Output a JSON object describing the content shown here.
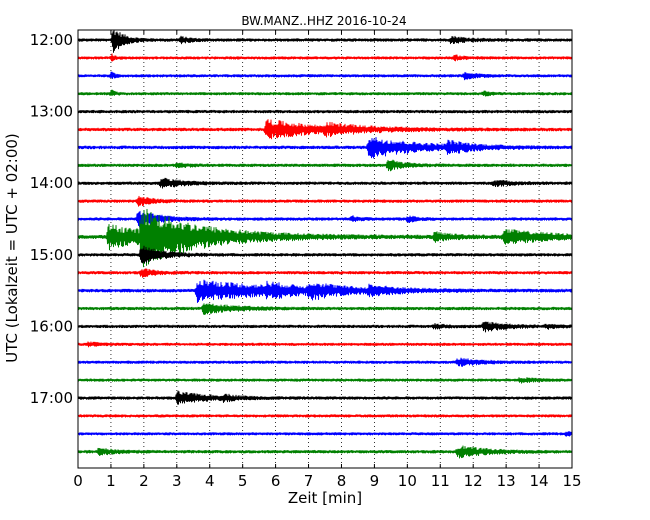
{
  "chart_data": {
    "type": "line",
    "title": "BW.MANZ..HHZ 2016-10-24",
    "xlabel": "Zeit  [min]",
    "ylabel": "UTC (Lokalzeit = UTC + 02:00)",
    "xlim": [
      0,
      15
    ],
    "x_ticks": [
      "0",
      "1",
      "2",
      "3",
      "4",
      "5",
      "6",
      "7",
      "8",
      "9",
      "10",
      "11",
      "12",
      "13",
      "14",
      "15"
    ],
    "y_ticks": [
      "12:00",
      "13:00",
      "14:00",
      "15:00",
      "16:00",
      "17:00"
    ],
    "trace_interval_min": 15,
    "start_time": "12:00",
    "grid": "vertical dotted lines at each minute",
    "trace_colors": [
      "#000000",
      "#ff0000",
      "#0000ff",
      "#008000"
    ],
    "traces": [
      {
        "start": "12:00",
        "color": "#000000",
        "noise": 1.3,
        "events": [
          {
            "t": 1.05,
            "amp": 14,
            "dur": 0.3
          },
          {
            "t": 3.1,
            "amp": 3,
            "dur": 0.3
          },
          {
            "t": 11.3,
            "amp": 3.5,
            "dur": 0.5
          }
        ]
      },
      {
        "start": "12:15",
        "color": "#ff0000",
        "noise": 1.2,
        "events": [
          {
            "t": 1.0,
            "amp": 4,
            "dur": 0.1
          },
          {
            "t": 11.4,
            "amp": 2.5,
            "dur": 0.3
          }
        ]
      },
      {
        "start": "12:30",
        "color": "#0000ff",
        "noise": 1.2,
        "events": [
          {
            "t": 1.0,
            "amp": 4,
            "dur": 0.1
          },
          {
            "t": 11.7,
            "amp": 3,
            "dur": 0.4
          }
        ]
      },
      {
        "start": "12:45",
        "color": "#008000",
        "noise": 1.2,
        "events": [
          {
            "t": 1.0,
            "amp": 4,
            "dur": 0.1
          },
          {
            "t": 12.3,
            "amp": 2.5,
            "dur": 0.2
          }
        ]
      },
      {
        "start": "13:00",
        "color": "#000000",
        "noise": 1.3,
        "events": []
      },
      {
        "start": "13:15",
        "color": "#ff0000",
        "noise": 1.4,
        "events": [
          {
            "t": 5.7,
            "amp": 10,
            "dur": 1.4
          },
          {
            "t": 7.5,
            "amp": 4,
            "dur": 1.2
          }
        ]
      },
      {
        "start": "13:30",
        "color": "#0000ff",
        "noise": 1.4,
        "events": [
          {
            "t": 8.8,
            "amp": 11,
            "dur": 1.4
          },
          {
            "t": 11.2,
            "amp": 5,
            "dur": 0.7
          }
        ]
      },
      {
        "start": "13:45",
        "color": "#008000",
        "noise": 1.3,
        "events": [
          {
            "t": 3.0,
            "amp": 2.5,
            "dur": 0.3
          },
          {
            "t": 9.4,
            "amp": 6,
            "dur": 0.4
          }
        ]
      },
      {
        "start": "14:00",
        "color": "#000000",
        "noise": 1.3,
        "events": [
          {
            "t": 2.5,
            "amp": 5,
            "dur": 0.6
          },
          {
            "t": 12.6,
            "amp": 3,
            "dur": 0.5
          }
        ]
      },
      {
        "start": "14:15",
        "color": "#ff0000",
        "noise": 1.3,
        "events": [
          {
            "t": 1.8,
            "amp": 5,
            "dur": 0.4
          }
        ]
      },
      {
        "start": "14:30",
        "color": "#0000ff",
        "noise": 1.3,
        "events": [
          {
            "t": 1.8,
            "amp": 9,
            "dur": 0.6
          },
          {
            "t": 8.3,
            "amp": 3,
            "dur": 0.2
          },
          {
            "t": 10.0,
            "amp": 3,
            "dur": 0.3
          }
        ]
      },
      {
        "start": "14:45",
        "color": "#008000",
        "noise": 1.6,
        "events": [
          {
            "t": 0.9,
            "amp": 12,
            "dur": 1.6
          },
          {
            "t": 1.9,
            "amp": 24,
            "dur": 1.8
          },
          {
            "t": 10.8,
            "amp": 4,
            "dur": 0.6
          },
          {
            "t": 12.9,
            "amp": 7,
            "dur": 1.4
          }
        ]
      },
      {
        "start": "15:00",
        "color": "#000000",
        "noise": 1.3,
        "events": [
          {
            "t": 1.9,
            "amp": 9,
            "dur": 0.6
          }
        ]
      },
      {
        "start": "15:15",
        "color": "#ff0000",
        "noise": 1.3,
        "events": [
          {
            "t": 1.9,
            "amp": 4,
            "dur": 0.4
          }
        ]
      },
      {
        "start": "15:30",
        "color": "#0000ff",
        "noise": 1.4,
        "events": [
          {
            "t": 3.6,
            "amp": 11,
            "dur": 2.2
          },
          {
            "t": 5.7,
            "amp": 5,
            "dur": 0.8
          },
          {
            "t": 7.0,
            "amp": 7,
            "dur": 0.8
          },
          {
            "t": 8.8,
            "amp": 4,
            "dur": 0.8
          }
        ]
      },
      {
        "start": "15:45",
        "color": "#008000",
        "noise": 1.3,
        "events": [
          {
            "t": 3.8,
            "amp": 6,
            "dur": 0.8
          }
        ]
      },
      {
        "start": "16:00",
        "color": "#000000",
        "noise": 1.3,
        "events": [
          {
            "t": 10.8,
            "amp": 2.5,
            "dur": 0.3
          },
          {
            "t": 12.3,
            "amp": 5,
            "dur": 0.6
          },
          {
            "t": 14.2,
            "amp": 2,
            "dur": 0.3
          }
        ]
      },
      {
        "start": "16:15",
        "color": "#ff0000",
        "noise": 1.2,
        "events": [
          {
            "t": 0.3,
            "amp": 2,
            "dur": 0.3
          }
        ]
      },
      {
        "start": "16:30",
        "color": "#0000ff",
        "noise": 1.2,
        "events": [
          {
            "t": 11.5,
            "amp": 4,
            "dur": 0.6
          }
        ]
      },
      {
        "start": "16:45",
        "color": "#008000",
        "noise": 1.2,
        "events": [
          {
            "t": 13.4,
            "amp": 2.5,
            "dur": 0.4
          }
        ]
      },
      {
        "start": "17:00",
        "color": "#000000",
        "noise": 1.3,
        "events": [
          {
            "t": 3.0,
            "amp": 6,
            "dur": 0.9
          },
          {
            "t": 4.4,
            "amp": 3,
            "dur": 0.3
          }
        ]
      },
      {
        "start": "17:15",
        "color": "#ff0000",
        "noise": 1.2,
        "events": []
      },
      {
        "start": "17:30",
        "color": "#0000ff",
        "noise": 1.2,
        "events": [
          {
            "t": 14.8,
            "amp": 2,
            "dur": 0.2
          }
        ]
      },
      {
        "start": "17:45",
        "color": "#008000",
        "noise": 1.3,
        "events": [
          {
            "t": 0.6,
            "amp": 3,
            "dur": 0.5
          },
          {
            "t": 11.5,
            "amp": 6,
            "dur": 0.8
          }
        ]
      }
    ]
  }
}
